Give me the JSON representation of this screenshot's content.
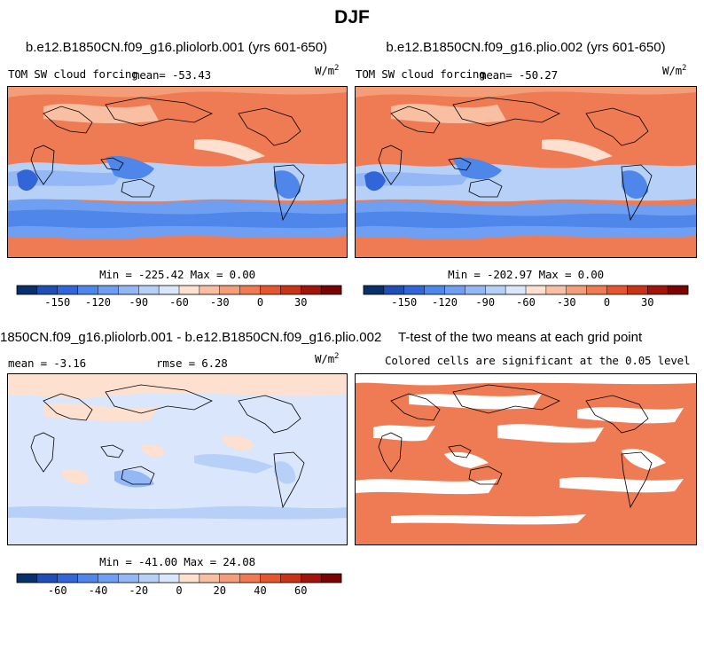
{
  "page_title": "DJF",
  "panels": [
    {
      "title": "b.e12.B1850CN.f09_g16.pliolorb.001 (yrs 601-650)",
      "left_label": "TOM SW cloud forcing",
      "mean_text": "mean= -53.43",
      "units": "W/m",
      "units_sup": "2",
      "minmax": "Min = -225.42 Max =    0.00"
    },
    {
      "title": "b.e12.B1850CN.f09_g16.plio.002 (yrs 601-650)",
      "left_label": "TOM SW cloud forcing",
      "mean_text": "mean= -50.27",
      "units": "W/m",
      "units_sup": "2",
      "minmax": "Min = -202.97 Max =    0.00"
    },
    {
      "title": "1850CN.f09_g16.pliolorb.001 - b.e12.B1850CN.f09_g16.plio.002",
      "mean_text": "mean =   -3.16",
      "rmse_text": "rmse =   6.28",
      "units": "W/m",
      "units_sup": "2",
      "minmax": "Min = -41.00 Max =  24.08"
    },
    {
      "title": "T-test of the two means at each grid point",
      "subtitle": "Colored cells are significant at the 0.05 level"
    }
  ],
  "colorbar_top": {
    "colors": [
      "#08306b",
      "#1f4fb4",
      "#3266d8",
      "#4f86ea",
      "#6f9ff2",
      "#93b8f5",
      "#b6d0f8",
      "#d9e6fb",
      "#fde0d0",
      "#f9bfa3",
      "#f49d79",
      "#ee7b53",
      "#e4562f",
      "#c83417",
      "#a0140c",
      "#7a0403"
    ],
    "ticks": [
      "-150",
      "-120",
      "-90",
      "-60",
      "-30",
      "0",
      "30"
    ],
    "tick_positions": [
      2,
      4,
      6,
      8,
      10,
      12,
      14
    ]
  },
  "colorbar_bottom": {
    "colors": [
      "#08306b",
      "#1f4fb4",
      "#3266d8",
      "#4f86ea",
      "#6f9ff2",
      "#93b8f5",
      "#b6d0f8",
      "#d9e6fb",
      "#fde0d0",
      "#f9bfa3",
      "#f49d79",
      "#ee7b53",
      "#e4562f",
      "#c83417",
      "#a0140c",
      "#7a0403"
    ],
    "ticks": [
      "-60",
      "-40",
      "-20",
      "0",
      "20",
      "40",
      "60"
    ],
    "tick_positions": [
      2,
      4,
      6,
      8,
      10,
      12,
      14
    ]
  },
  "chart_data": [
    {
      "type": "heatmap",
      "title": "b.e12.B1850CN.f09_g16.pliolorb.001 (yrs 601-650)",
      "variable": "TOM SW cloud forcing",
      "units": "W/m2",
      "mean": -53.43,
      "min": -225.42,
      "max": 0.0,
      "levels": [
        -150,
        -120,
        -90,
        -60,
        -30,
        0,
        30
      ]
    },
    {
      "type": "heatmap",
      "title": "b.e12.B1850CN.f09_g16.plio.002 (yrs 601-650)",
      "variable": "TOM SW cloud forcing",
      "units": "W/m2",
      "mean": -50.27,
      "min": -202.97,
      "max": 0.0,
      "levels": [
        -150,
        -120,
        -90,
        -60,
        -30,
        0,
        30
      ]
    },
    {
      "type": "heatmap",
      "title": "1850CN.f09_g16.pliolorb.001 - b.e12.B1850CN.f09_g16.plio.002",
      "units": "W/m2",
      "mean": -3.16,
      "rmse": 6.28,
      "min": -41.0,
      "max": 24.08,
      "levels": [
        -60,
        -40,
        -20,
        0,
        20,
        40,
        60
      ]
    },
    {
      "type": "heatmap",
      "title": "T-test of the two means at each grid point",
      "note": "Colored cells are significant at the 0.05 level",
      "significance_level": 0.05
    }
  ]
}
